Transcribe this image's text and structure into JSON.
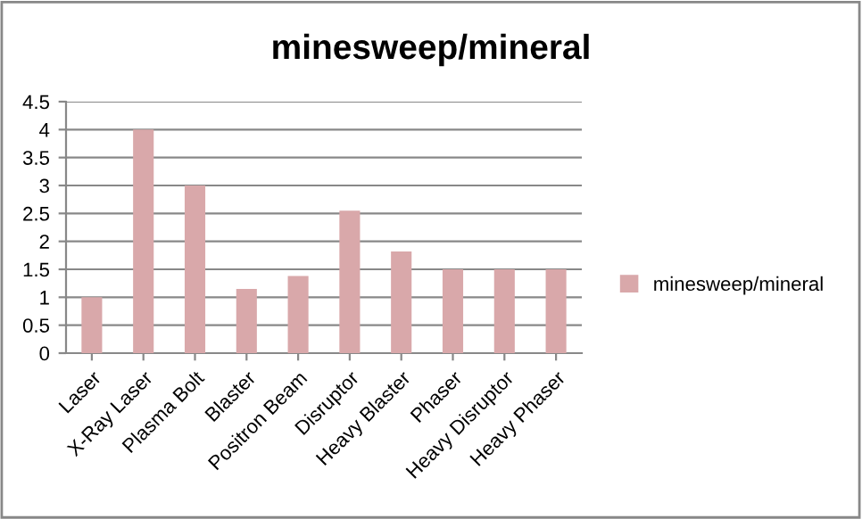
{
  "chart_data": {
    "type": "bar",
    "title": "minesweep/mineral",
    "categories": [
      "Laser",
      "X-Ray Laser",
      "Plasma Bolt",
      "Blaster",
      "Positron Beam",
      "Disruptor",
      "Heavy Blaster",
      "Phaser",
      "Heavy Disruptor",
      "Heavy Phaser"
    ],
    "series": [
      {
        "name": "minesweep/mineral",
        "color": "#d9a8aa",
        "values": [
          1,
          4,
          3,
          1.15,
          1.38,
          2.55,
          1.82,
          1.5,
          1.5,
          1.5
        ]
      }
    ],
    "ylim": [
      0,
      4.5
    ],
    "yticks": [
      0,
      0.5,
      1,
      1.5,
      2,
      2.5,
      3,
      3.5,
      4,
      4.5
    ],
    "grid": "y",
    "legend": "right"
  }
}
